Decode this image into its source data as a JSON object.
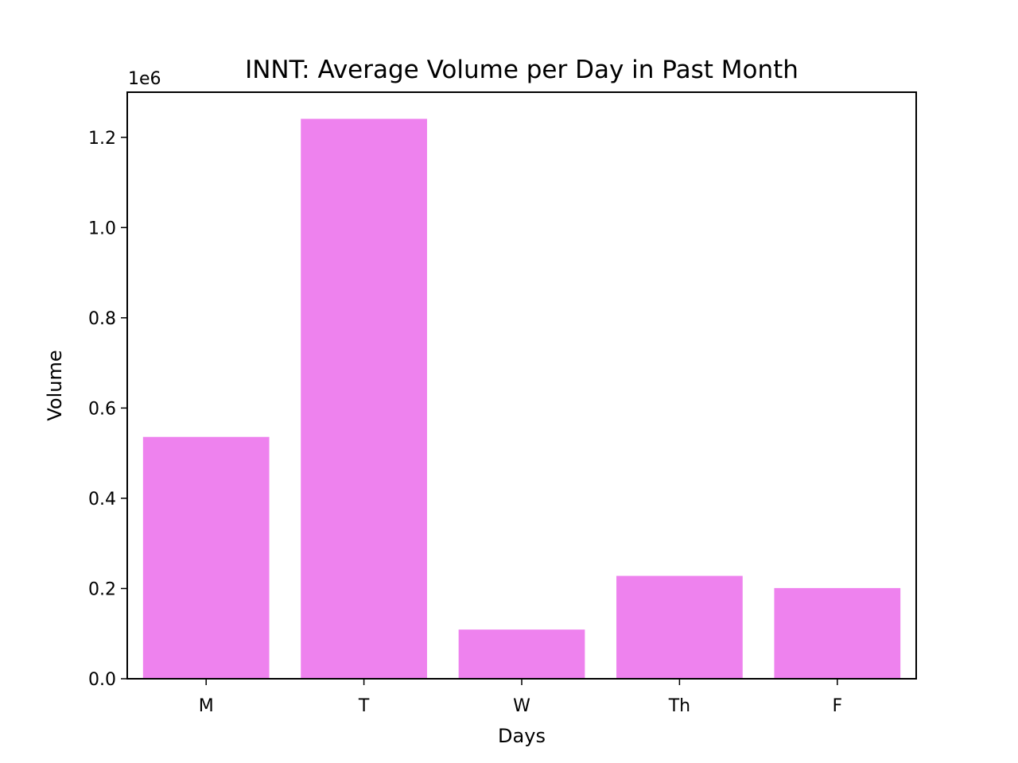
{
  "chart_data": {
    "type": "bar",
    "title": "INNT: Average Volume per Day in Past Month",
    "xlabel": "Days",
    "ylabel": "Volume",
    "y_offset_label": "1e6",
    "categories": [
      "M",
      "T",
      "W",
      "Th",
      "F"
    ],
    "values": [
      536000,
      1241000,
      109000,
      228000,
      201000
    ],
    "ylim": [
      0,
      1300000
    ],
    "yticks": [
      0,
      200000,
      400000,
      600000,
      800000,
      1000000,
      1200000
    ],
    "ytick_labels": [
      "0.0",
      "0.2",
      "0.4",
      "0.6",
      "0.8",
      "1.0",
      "1.2"
    ],
    "bar_color": "#ee82ee",
    "grid": false,
    "legend": "none"
  }
}
